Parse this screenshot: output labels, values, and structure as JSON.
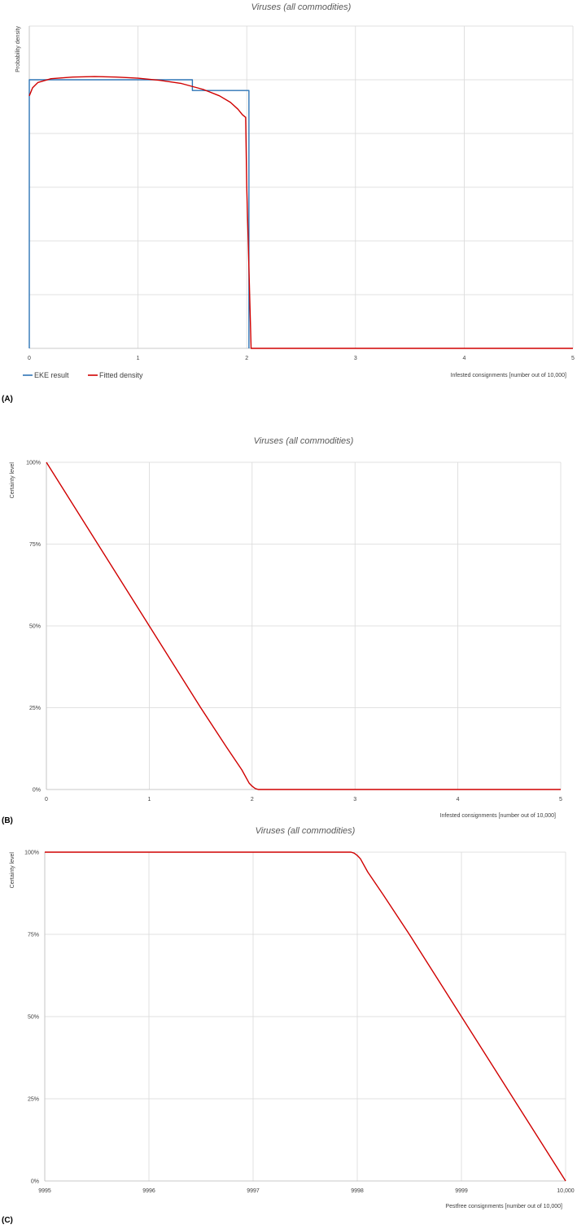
{
  "chart_data": [
    {
      "panel_label": "(A)",
      "type": "line",
      "title": "Viruses (all commodities)",
      "xlabel": "Infested consignments [number out of 10,000]",
      "ylabel": "Probability density",
      "xlim": [
        0,
        5
      ],
      "ylim": [
        0,
        0.6
      ],
      "x_ticks": [
        0,
        1,
        2,
        3,
        4,
        5
      ],
      "x_tick_labels": [
        "0",
        "1",
        "2",
        "3",
        "4",
        "5"
      ],
      "y_ticks": [
        0,
        0.1,
        0.2,
        0.3,
        0.4,
        0.5,
        0.6
      ],
      "y_tick_labels": [],
      "grid": true,
      "legend": "bottom-left",
      "series": [
        {
          "name": "EKE result",
          "color": "#2e75b6",
          "style": "step",
          "x": [
            0,
            0,
            1.5,
            1.5,
            2.02,
            2.02,
            2.02
          ],
          "y": [
            0,
            0.5,
            0.5,
            0.48,
            0.48,
            0,
            0
          ]
        },
        {
          "name": "Fitted density",
          "color": "#d00000",
          "style": "line",
          "x": [
            0,
            0.03,
            0.08,
            0.2,
            0.4,
            0.6,
            0.8,
            1.0,
            1.2,
            1.4,
            1.6,
            1.75,
            1.85,
            1.92,
            1.96,
            1.99,
            2.0,
            2.04,
            2.06,
            2.2,
            3,
            4,
            5
          ],
          "y": [
            0.47,
            0.485,
            0.495,
            0.502,
            0.505,
            0.506,
            0.505,
            0.503,
            0.499,
            0.493,
            0.482,
            0.47,
            0.458,
            0.445,
            0.435,
            0.43,
            0.3,
            0.0,
            0,
            0,
            0,
            0,
            0
          ]
        }
      ]
    },
    {
      "panel_label": "(B)",
      "type": "line",
      "title": "Viruses (all commodities)",
      "xlabel": "Infested consignments [number out of 10,000]",
      "ylabel": "Certainty level",
      "xlim": [
        0,
        5
      ],
      "ylim": [
        0,
        100
      ],
      "x_ticks": [
        0,
        1,
        2,
        3,
        4,
        5
      ],
      "x_tick_labels": [
        "0",
        "1",
        "2",
        "3",
        "4",
        "5"
      ],
      "y_ticks": [
        0,
        25,
        50,
        75,
        100
      ],
      "y_tick_labels": [
        "0%",
        "25%",
        "50%",
        "75%",
        "100%"
      ],
      "grid": true,
      "series": [
        {
          "name": "",
          "color": "#d00000",
          "x": [
            0,
            0.25,
            0.5,
            0.75,
            1.0,
            1.25,
            1.5,
            1.75,
            1.9,
            1.97,
            2.0,
            2.03,
            2.06,
            3,
            4,
            5
          ],
          "y": [
            100,
            87.5,
            75,
            62.5,
            50,
            37.5,
            25,
            13,
            6,
            2,
            1,
            0.3,
            0,
            0,
            0,
            0
          ]
        }
      ]
    },
    {
      "panel_label": "(C)",
      "type": "line",
      "title": "Viruses (all commodities)",
      "xlabel": "Pestfree consignments [number out of 10,000]",
      "ylabel": "Certainty level",
      "xlim": [
        9995,
        10000
      ],
      "ylim": [
        0,
        100
      ],
      "x_ticks": [
        9995,
        9996,
        9997,
        9998,
        9999,
        10000
      ],
      "x_tick_labels": [
        "9995",
        "9996",
        "9997",
        "9998",
        "9999",
        "10,000"
      ],
      "y_ticks": [
        0,
        25,
        50,
        75,
        100
      ],
      "y_tick_labels": [
        "0%",
        "25%",
        "50%",
        "75%",
        "100%"
      ],
      "grid": true,
      "series": [
        {
          "name": "",
          "color": "#d00000",
          "x": [
            9995,
            9996,
            9997,
            9997.94,
            9997.97,
            9998.0,
            9998.03,
            9998.1,
            9998.25,
            9998.5,
            9998.75,
            9999.0,
            9999.25,
            9999.5,
            9999.75,
            10000
          ],
          "y": [
            100,
            100,
            100,
            100,
            99.7,
            99,
            98,
            94,
            87,
            75,
            62.5,
            50,
            37.5,
            25,
            12.5,
            0
          ]
        }
      ]
    }
  ]
}
